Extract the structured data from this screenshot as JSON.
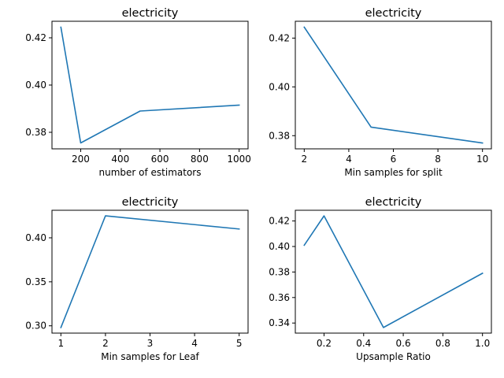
{
  "colors": {
    "series": "#1f77b4",
    "axes": "#000000",
    "background": "#ffffff"
  },
  "chart_data": [
    {
      "type": "line",
      "title": "electricity",
      "xlabel": "number of estimators",
      "ylabel": "",
      "grid": false,
      "x": [
        100,
        200,
        500,
        1000
      ],
      "series": [
        {
          "values": [
            0.4245,
            0.3755,
            0.389,
            0.3915
          ]
        }
      ],
      "xlim": [
        55,
        1045
      ],
      "ylim": [
        0.373,
        0.427
      ],
      "xticks": [
        200,
        400,
        600,
        800,
        1000
      ],
      "xtick_labels": [
        "200",
        "400",
        "600",
        "800",
        "1000"
      ],
      "yticks": [
        0.38,
        0.4,
        0.42
      ],
      "ytick_labels": [
        "0.38",
        "0.40",
        "0.42"
      ]
    },
    {
      "type": "line",
      "title": "electricity",
      "xlabel": "Min samples for split",
      "ylabel": "",
      "grid": false,
      "x": [
        2,
        5,
        10
      ],
      "series": [
        {
          "values": [
            0.4245,
            0.3835,
            0.377
          ]
        }
      ],
      "xlim": [
        1.6,
        10.4
      ],
      "ylim": [
        0.3746,
        0.4269
      ],
      "xticks": [
        2,
        4,
        6,
        8,
        10
      ],
      "xtick_labels": [
        "2",
        "4",
        "6",
        "8",
        "10"
      ],
      "yticks": [
        0.38,
        0.4,
        0.42
      ],
      "ytick_labels": [
        "0.38",
        "0.40",
        "0.42"
      ]
    },
    {
      "type": "line",
      "title": "electricity",
      "xlabel": "Min samples for Leaf",
      "ylabel": "",
      "grid": false,
      "x": [
        1,
        2,
        5
      ],
      "series": [
        {
          "values": [
            0.298,
            0.425,
            0.41
          ]
        }
      ],
      "xlim": [
        0.8,
        5.2
      ],
      "ylim": [
        0.2917,
        0.4313
      ],
      "xticks": [
        1,
        2,
        3,
        4,
        5
      ],
      "xtick_labels": [
        "1",
        "2",
        "3",
        "4",
        "5"
      ],
      "yticks": [
        0.3,
        0.35,
        0.4
      ],
      "ytick_labels": [
        "0.30",
        "0.35",
        "0.40"
      ]
    },
    {
      "type": "line",
      "title": "electricity",
      "xlabel": "Upsample Ratio",
      "ylabel": "",
      "grid": false,
      "x": [
        0.1,
        0.2,
        0.5,
        1.0
      ],
      "series": [
        {
          "values": [
            0.401,
            0.424,
            0.3365,
            0.379
          ]
        }
      ],
      "xlim": [
        0.055,
        1.045
      ],
      "ylim": [
        0.3321,
        0.4284
      ],
      "xticks": [
        0.2,
        0.4,
        0.6,
        0.8,
        1.0
      ],
      "xtick_labels": [
        "0.2",
        "0.4",
        "0.6",
        "0.8",
        "1.0"
      ],
      "yticks": [
        0.34,
        0.36,
        0.38,
        0.4,
        0.42
      ],
      "ytick_labels": [
        "0.34",
        "0.36",
        "0.38",
        "0.40",
        "0.42"
      ]
    }
  ]
}
